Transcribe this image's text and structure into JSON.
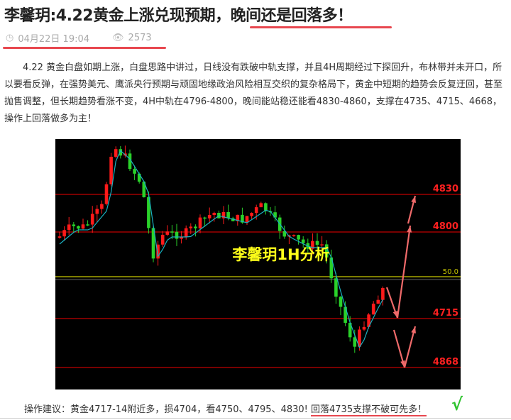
{
  "article": {
    "title": "李馨玥:4.22黄金上涨兑现预期，晚间还是回落多！",
    "date": "04月22日 19:04",
    "views": "2573",
    "icons": {
      "date": "clock-icon",
      "views": "eye-icon"
    },
    "body": "4.22 黄金白盘如期上涨，白盘思路中讲过，日线没有跌破中轨支撑，并且4H周期经过下探回升，布林带并未开口，所以要看反弹，在强势美元、鹰派央行预期与顽固地缘政治风险相互交织的复杂格局下，黄金中短期的趋势会反复迂回，甚至抛售调整，但长期趋势看涨不变，4H中轨在4796-4800，晚间能站稳还能看4830-4860，支撑在4735、4715、4668，操作上回落做多为主！",
    "advice_prefix": "操作建议：黄金4717-14附近多，损4704，看4750、4795、4830! ",
    "advice_highlight": "回落4735支撑不破可先多！",
    "check": "√"
  },
  "chart": {
    "watermark": "李馨玥1H分析",
    "levels": [
      "4830",
      "4800",
      "50.0",
      "4715",
      "4868"
    ],
    "colors": {
      "up": "#ff1a1a",
      "down": "#2ad22a",
      "ma": "#1ab0c0",
      "level": "#c00000",
      "fib": "#c8c800",
      "arrow": "#f06a6a"
    }
  }
}
